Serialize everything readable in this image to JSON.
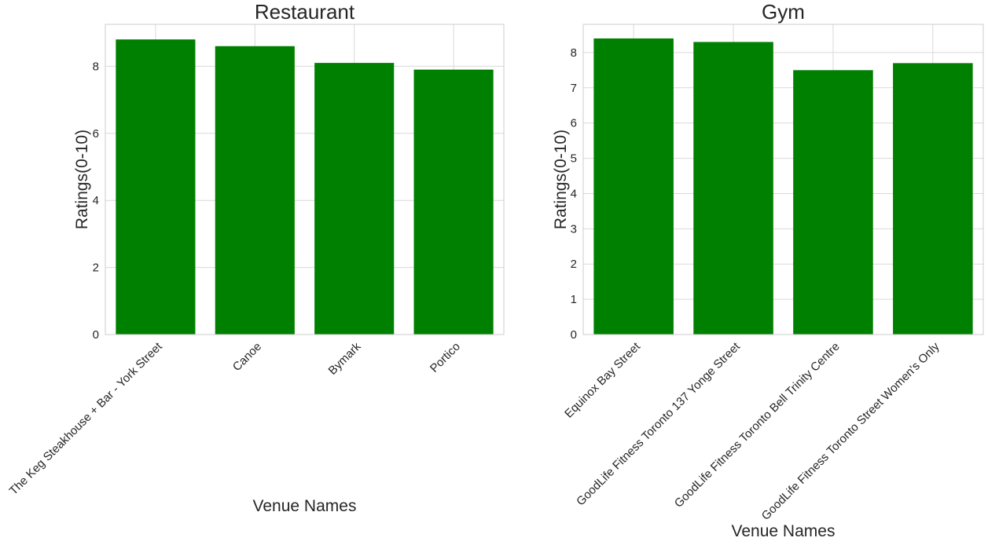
{
  "chart_data": [
    {
      "type": "bar",
      "title": "Restaurant",
      "xlabel": "Venue Names",
      "ylabel": "Ratings(0-10)",
      "categories": [
        "The Keg Steakhouse + Bar - York Street",
        "Canoe",
        "Bymark",
        "Portico"
      ],
      "values": [
        8.8,
        8.6,
        8.1,
        7.9
      ],
      "ylim": [
        0,
        9.25
      ],
      "yticks": [
        0,
        2,
        4,
        6,
        8
      ],
      "bar_color": "#008000",
      "grid": true
    },
    {
      "type": "bar",
      "title": "Gym",
      "xlabel": "Venue Names",
      "ylabel": "Ratings(0-10)",
      "categories": [
        "Equinox Bay Street",
        "GoodLife Fitness Toronto 137 Yonge Street",
        "GoodLife Fitness Toronto Bell Trinity Centre",
        "GoodLife Fitness Toronto Street Women's Only"
      ],
      "values": [
        8.4,
        8.3,
        7.5,
        7.7
      ],
      "ylim": [
        0,
        8.8
      ],
      "yticks": [
        0,
        1,
        2,
        3,
        4,
        5,
        6,
        7,
        8
      ],
      "bar_color": "#008000",
      "grid": true
    }
  ]
}
